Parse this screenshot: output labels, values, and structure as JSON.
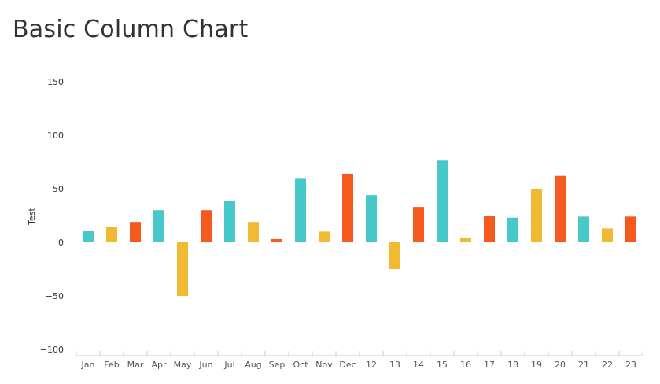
{
  "chart_data": {
    "type": "bar",
    "title": "Basic Column Chart",
    "xlabel": "",
    "ylabel": "Test",
    "ylim": [
      -100,
      150
    ],
    "yticks": [
      -100,
      -50,
      0,
      50,
      100,
      150
    ],
    "ytick_labels": [
      "−100",
      "−50",
      "0",
      "50",
      "100",
      "150"
    ],
    "categories": [
      "Jan",
      "Feb",
      "Mar",
      "Apr",
      "May",
      "Jun",
      "Jul",
      "Aug",
      "Sep",
      "Oct",
      "Nov",
      "Dec",
      "12",
      "13",
      "14",
      "15",
      "16",
      "17",
      "18",
      "19",
      "20",
      "21",
      "22",
      "23"
    ],
    "values": [
      11,
      14,
      19,
      30,
      -50,
      30,
      39,
      19,
      3,
      60,
      10,
      64,
      44,
      -25,
      33,
      77,
      4,
      25,
      23,
      50,
      62,
      24,
      13,
      24
    ],
    "grid": false,
    "legend": "none"
  },
  "colors": {
    "palette": [
      "#47c9c9",
      "#f2b933",
      "#f5591e"
    ],
    "axis": "#cccccc",
    "title": "#333333"
  }
}
